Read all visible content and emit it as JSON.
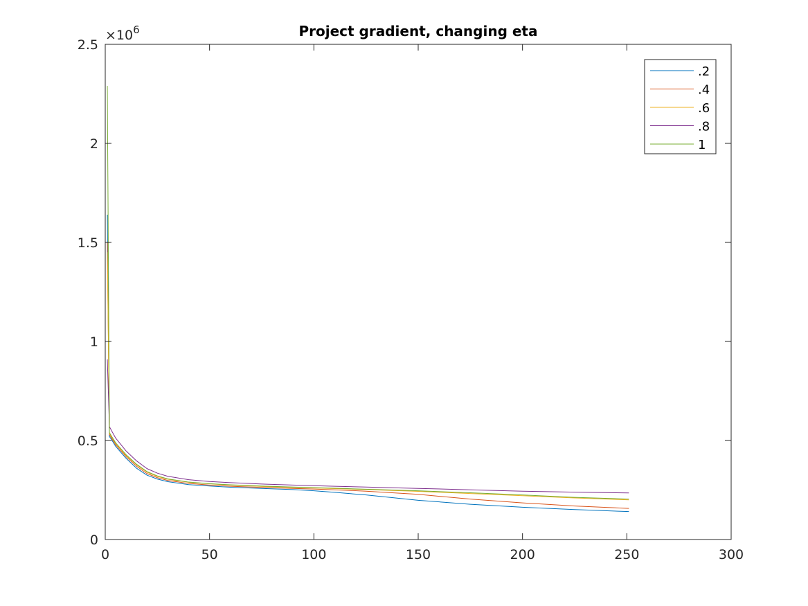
{
  "chart_data": {
    "type": "line",
    "title": "Project gradient, changing eta",
    "xlabel": "",
    "ylabel": "",
    "xlim": [
      0,
      300
    ],
    "ylim": [
      0,
      2500000
    ],
    "x_ticks": [
      0,
      50,
      100,
      150,
      200,
      250,
      300
    ],
    "x_tick_labels": [
      "0",
      "50",
      "100",
      "150",
      "200",
      "250",
      "300"
    ],
    "y_ticks": [
      0,
      500000,
      1000000,
      1500000,
      2000000,
      2500000
    ],
    "y_tick_labels": [
      "0",
      "0.5",
      "1",
      "1.5",
      "2",
      "2.5"
    ],
    "y_exponent_base": "×10",
    "y_exponent_power": "6",
    "grid": false,
    "legend_position": "top-right",
    "series": [
      {
        "name": ".2",
        "color": "#0072BD",
        "x": [
          1,
          2,
          3,
          5,
          10,
          15,
          20,
          25,
          30,
          40,
          50,
          60,
          75,
          90,
          100,
          110,
          125,
          150,
          175,
          200,
          225,
          251
        ],
        "y": [
          1640000,
          520000,
          505000,
          470000,
          410000,
          360000,
          325000,
          305000,
          292000,
          277000,
          270000,
          264000,
          258000,
          252000,
          246000,
          238000,
          225000,
          198000,
          178000,
          163000,
          151000,
          141000
        ]
      },
      {
        "name": ".4",
        "color": "#D95319",
        "x": [
          1,
          2,
          3,
          5,
          10,
          15,
          20,
          25,
          30,
          40,
          50,
          60,
          75,
          90,
          100,
          110,
          125,
          150,
          175,
          200,
          225,
          251
        ],
        "y": [
          1500000,
          530000,
          512000,
          478000,
          418000,
          370000,
          333000,
          312000,
          298000,
          283000,
          275000,
          269000,
          263000,
          258000,
          255000,
          251000,
          244000,
          228000,
          204000,
          185000,
          169000,
          157000
        ]
      },
      {
        "name": ".6",
        "color": "#EDB120",
        "x": [
          1,
          2,
          3,
          5,
          10,
          15,
          20,
          25,
          30,
          40,
          50,
          60,
          75,
          90,
          100,
          110,
          125,
          150,
          175,
          200,
          225,
          251
        ],
        "y": [
          1450000,
          535000,
          518000,
          484000,
          424000,
          377000,
          340000,
          318000,
          304000,
          289000,
          281000,
          275000,
          268000,
          263000,
          260000,
          257000,
          252000,
          243000,
          232000,
          221000,
          210000,
          200000
        ]
      },
      {
        "name": ".8",
        "color": "#7E2F8E",
        "x": [
          1,
          2,
          3,
          5,
          10,
          15,
          20,
          25,
          30,
          40,
          50,
          60,
          75,
          90,
          100,
          110,
          125,
          150,
          175,
          200,
          225,
          251
        ],
        "y": [
          910000,
          570000,
          550000,
          512000,
          447000,
          397000,
          358000,
          335000,
          319000,
          302000,
          293000,
          287000,
          280000,
          275000,
          272000,
          269000,
          265000,
          258000,
          251000,
          244000,
          239000,
          235000
        ]
      },
      {
        "name": "1",
        "color": "#77AC30",
        "x": [
          1,
          2,
          3,
          5,
          10,
          15,
          20,
          25,
          30,
          40,
          50,
          60,
          75,
          90,
          100,
          110,
          125,
          150,
          175,
          200,
          225,
          251
        ],
        "y": [
          2290000,
          540000,
          522000,
          488000,
          428000,
          380000,
          343000,
          321000,
          306000,
          290000,
          282000,
          276000,
          270000,
          265000,
          262000,
          259000,
          254000,
          246000,
          236000,
          225000,
          213000,
          204000
        ]
      }
    ]
  }
}
